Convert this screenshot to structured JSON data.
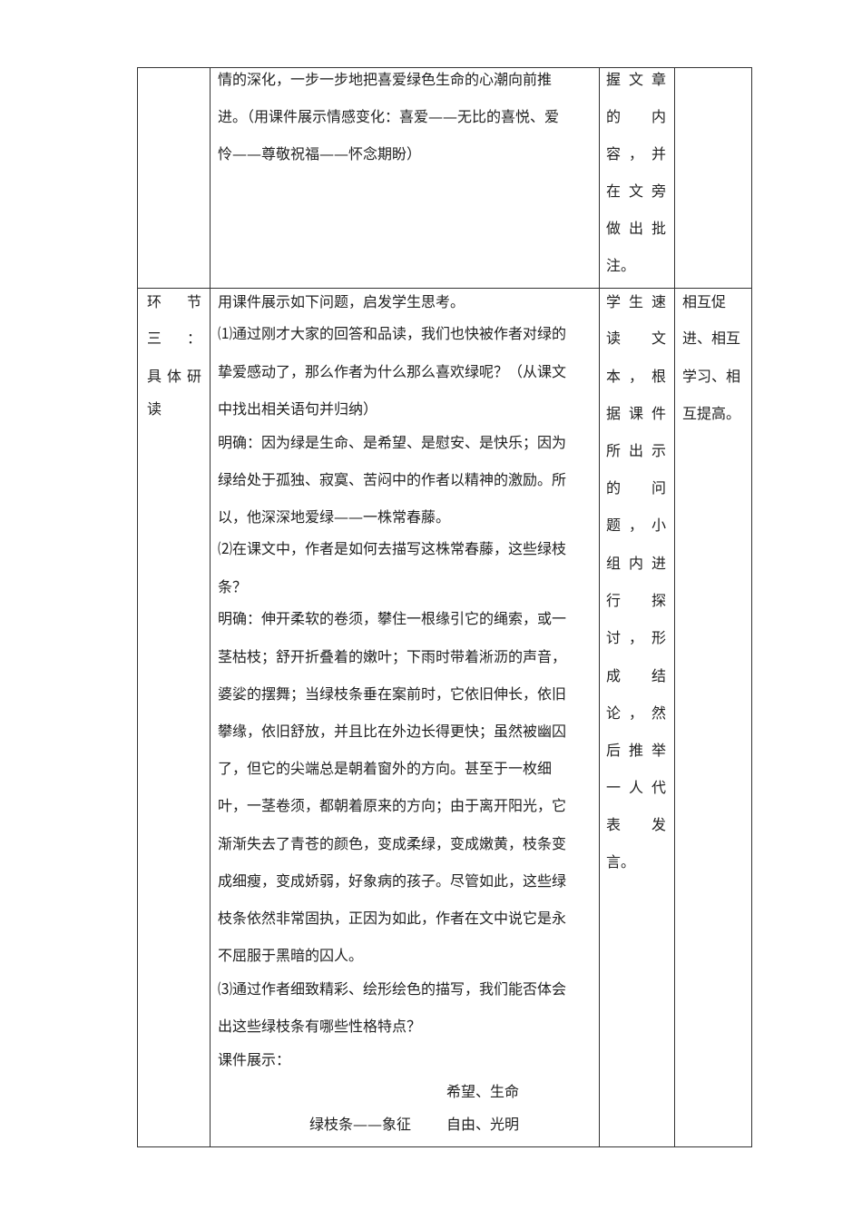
{
  "table": {
    "row1": {
      "stage": [],
      "content": [
        "情的深化，一步一步地把喜爱绿色生命的心潮向前推",
        "进。（用课件展示情感变化：喜爱——无比的喜悦、爱",
        "怜——尊敬祝福——怀念期盼）"
      ],
      "student": [
        "握文章",
        "的内",
        "容，并",
        "在文旁",
        "做出批",
        "注。"
      ],
      "purpose": []
    },
    "row2": {
      "stage": [
        "环节",
        "三：",
        "具体研",
        "读"
      ],
      "content": [
        "用课件展示如下问题，启发学生思考。",
        "⑴通过刚才大家的回答和品读，我们也快被作者对绿的",
        "挚爱感动了，那么作者为什么那么喜欢绿呢？（从课文",
        "中找出相关语句并归纳）",
        "明确：因为绿是生命、是希望、是慰安、是快乐；因为",
        "绿给处于孤独、寂寞、苦闷中的作者以精神的激励。所",
        "以，他深深地爱绿——一株常春藤。",
        "⑵在课文中，作者是如何去描写这株常春藤，这些绿枝",
        "条？",
        "明确：伸开柔软的卷须，攀住一根缘引它的绳索，或一",
        "茎枯枝；舒开折叠着的嫩叶；下雨时带着淅沥的声音，",
        "婆娑的摆舞；当绿枝条垂在案前时，它依旧伸长，依旧",
        "攀缘，依旧舒放，并且比在外边长得更快；虽然被幽囚",
        "了，但它的尖端总是朝着窗外的方向。甚至于一枚细",
        "叶，一茎卷须，都朝着原来的方向；由于离开阳光，它",
        "渐渐失去了青苍的颜色，变成柔绿，变成嫩黄，枝条变",
        "成细瘦，变成娇弱，好象病的孩子。尽管如此，这些绿",
        "枝条依然非常固执，正因为如此，作者在文中说它是永",
        "不屈服于黑暗的囚人。",
        "⑶通过作者细致精彩、绘形绘色的描写，我们能否体会",
        "出这些绿枝条有哪些性格特点？",
        "课件展示："
      ],
      "diagram": {
        "upper": "希望、生命",
        "left": "绿枝条——象征",
        "lower": "自由、光明"
      },
      "student": [
        "学生速",
        "读文",
        "本，根",
        "据课件",
        "所出示",
        "的问",
        "题，小",
        "组内进",
        "行探",
        "讨，形",
        "成结",
        "论，然",
        "后推举",
        "一人代",
        "表发",
        "言。"
      ],
      "purpose": [
        "相互促",
        "进、相互",
        "学习、相",
        "互提高。"
      ]
    }
  }
}
